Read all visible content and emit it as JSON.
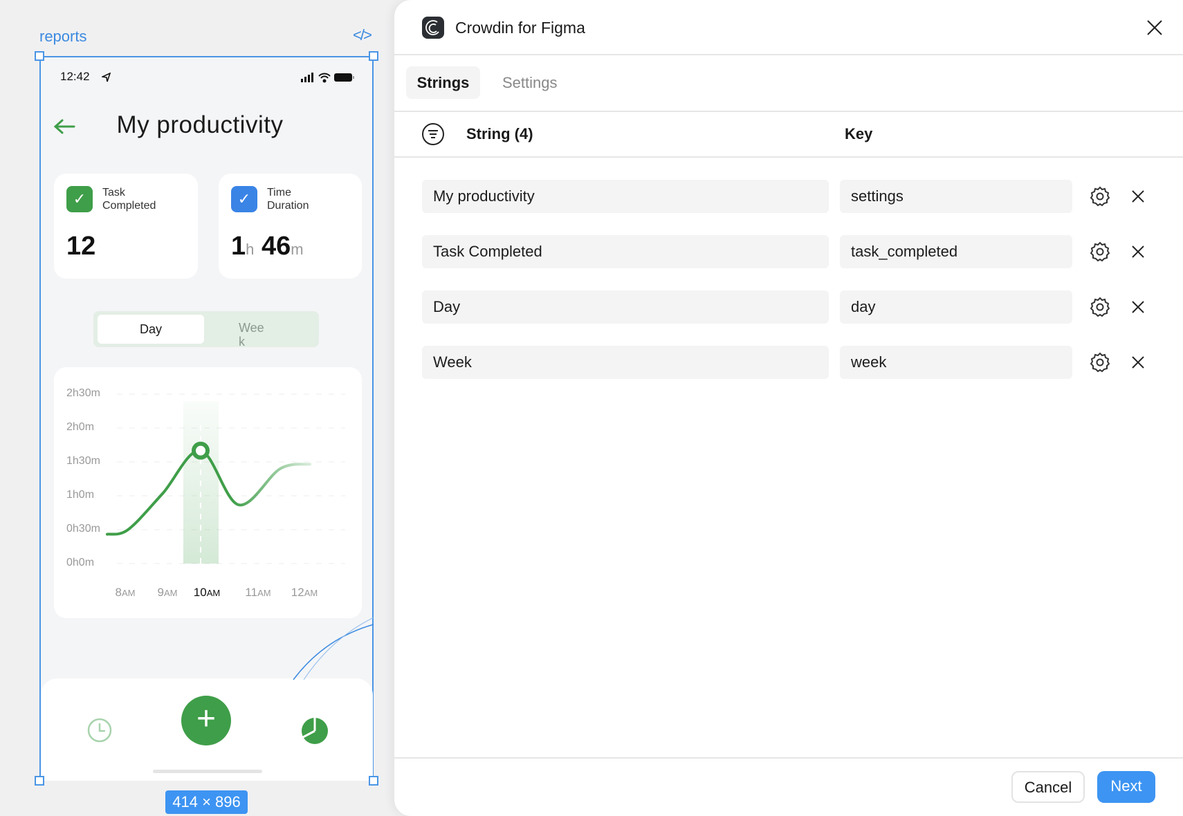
{
  "canvas": {
    "frame_name": "reports",
    "code_icon": "code-icon",
    "size_badge": "414 × 896",
    "accent": "#4a95e6"
  },
  "phone": {
    "status_time": "12:42",
    "title": "My productivity",
    "cards": [
      {
        "label": "Task Completed",
        "value": "12",
        "color": "#3f9e49"
      },
      {
        "label": "Time Duration",
        "hours": "1",
        "hours_unit": "h",
        "minutes": "46",
        "minutes_unit": "m",
        "color": "#3a84e6"
      }
    ],
    "toggle": {
      "options": [
        "Day",
        "Week"
      ],
      "selected": "Day"
    },
    "nav": {
      "left_icon": "clock-icon",
      "center_icon": "plus-icon",
      "right_icon": "pie-chart-icon"
    }
  },
  "chart_data": {
    "type": "line",
    "categories": [
      "8AM",
      "9AM",
      "10AM",
      "11AM",
      "12AM"
    ],
    "highlighted": "10AM",
    "y_ticks": [
      "0h0m",
      "0h30m",
      "1h0m",
      "1h30m",
      "2h0m",
      "2h30m"
    ],
    "ylim_minutes": [
      0,
      150
    ],
    "series": [
      {
        "values_minutes": [
          30,
          62,
          100,
          52,
          84
        ]
      }
    ],
    "grid": true,
    "color": "#3f9e49"
  },
  "plugin": {
    "title": "Crowdin for Figma",
    "tabs": [
      {
        "label": "Strings",
        "active": true
      },
      {
        "label": "Settings",
        "active": false
      }
    ],
    "columns": {
      "string": "String (4)",
      "key": "Key"
    },
    "rows": [
      {
        "string": "My productivity",
        "key": "settings"
      },
      {
        "string": "Task Completed",
        "key": "task_completed"
      },
      {
        "string": "Day",
        "key": "day"
      },
      {
        "string": "Week",
        "key": "week"
      }
    ],
    "cancel_label": "Cancel",
    "next_label": "Next",
    "primary_color": "#3d94f2"
  }
}
